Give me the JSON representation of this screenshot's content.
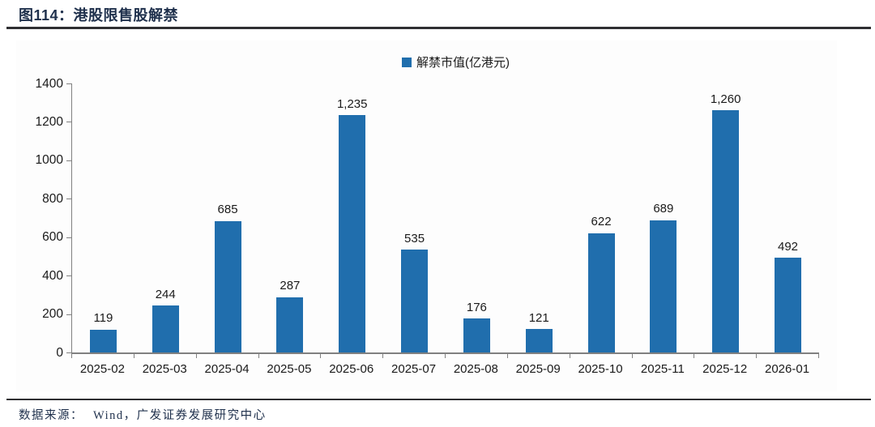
{
  "header": {
    "title": "图114：港股限售股解禁"
  },
  "footer": {
    "source_label": "数据来源：",
    "source_text": "Wind，广发证券发展研究中心"
  },
  "colors": {
    "bar": "#206EAD",
    "navy": "#1F304C",
    "rule": "#2F2F32",
    "axis": "#808080"
  },
  "chart_data": {
    "type": "bar",
    "title": "图114：港股限售股解禁",
    "legend": "解禁市值(亿港元)",
    "legend_position": "top-center",
    "grid": false,
    "xlabel": "",
    "ylabel": "",
    "ylim": [
      0,
      1400
    ],
    "yticks": [
      0,
      200,
      400,
      600,
      800,
      1000,
      1200,
      1400
    ],
    "categories": [
      "2025-02",
      "2025-03",
      "2025-04",
      "2025-05",
      "2025-06",
      "2025-07",
      "2025-08",
      "2025-09",
      "2025-10",
      "2025-11",
      "2025-12",
      "2026-01"
    ],
    "values": [
      119,
      244,
      685,
      287,
      1235,
      535,
      176,
      121,
      622,
      689,
      1260,
      492
    ],
    "value_labels": [
      "119",
      "244",
      "685",
      "287",
      "1,235",
      "535",
      "176",
      "121",
      "622",
      "689",
      "1,260",
      "492"
    ]
  }
}
